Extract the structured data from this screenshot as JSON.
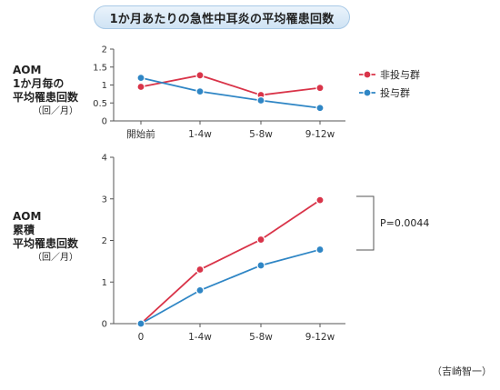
{
  "title": "1か月あたりの急性中耳炎の平均罹患回数",
  "source": "（吉崎智一）",
  "colors": {
    "non_treated": "#d93449",
    "treated": "#2f86c5",
    "axis": "#555555",
    "title_bg": "#d6e7f6"
  },
  "chart_data": [
    {
      "type": "line",
      "ylabel_lines": [
        "AOM",
        "1か月毎の",
        "平均罹患回数"
      ],
      "yunit": "（回／月）",
      "categories": [
        "開始前",
        "1-4w",
        "5-8w",
        "9-12w"
      ],
      "yticks": [
        "0",
        "0.5",
        "1",
        "1.5",
        "2"
      ],
      "ylim": [
        0,
        2
      ],
      "legend": {
        "placement": "right",
        "entries": [
          "非投与群",
          "投与群"
        ]
      },
      "series": [
        {
          "name": "非投与群",
          "values": [
            0.95,
            1.27,
            0.72,
            0.92
          ]
        },
        {
          "name": "投与群",
          "values": [
            1.2,
            0.82,
            0.57,
            0.36
          ]
        }
      ]
    },
    {
      "type": "line",
      "ylabel_lines": [
        "AOM",
        "累積",
        "平均罹患回数"
      ],
      "yunit": "（回／月）",
      "categories": [
        "0",
        "1-4w",
        "5-8w",
        "9-12w"
      ],
      "yticks": [
        "0",
        "1",
        "2",
        "3",
        "4"
      ],
      "ylim": [
        0,
        4
      ],
      "annotation": "P=0.0044",
      "series": [
        {
          "name": "非投与群",
          "values": [
            0,
            1.3,
            2.02,
            2.97
          ]
        },
        {
          "name": "投与群",
          "values": [
            0,
            0.8,
            1.4,
            1.78
          ]
        }
      ]
    }
  ]
}
